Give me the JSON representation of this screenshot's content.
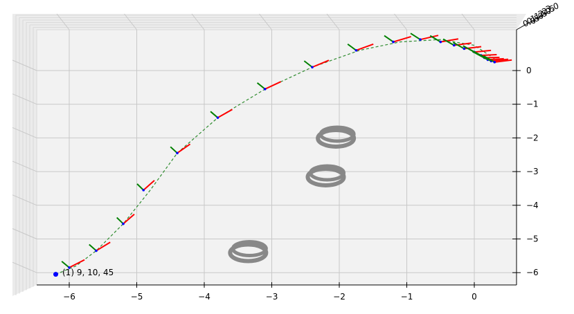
{
  "chart_data": {
    "type": "scatter",
    "projection": "3d",
    "view": "top-down",
    "grid": true,
    "x_ticks": [
      "−6",
      "−5",
      "−4",
      "−3",
      "−2",
      "−1",
      "0"
    ],
    "y_ticks": [
      "0",
      "−1",
      "−2",
      "−3",
      "−4",
      "−5",
      "−6"
    ],
    "z_ticks": [
      "3.0",
      "2.5",
      "2.0",
      "1.5",
      "1.0",
      "0.5",
      "0.0"
    ],
    "xlim": [
      -6.5,
      0.6
    ],
    "ylim": [
      -6.4,
      0.6
    ],
    "trajectory": {
      "style": "dashed",
      "color": "#2e8b2e",
      "x": [
        -6.2,
        -5.9,
        -5.6,
        -5.2,
        -4.8,
        -4.4,
        -3.8,
        -3.1,
        -2.4,
        -1.7,
        -1.1,
        -0.5,
        0.0,
        0.3
      ],
      "y": [
        -6.05,
        -5.8,
        -5.35,
        -4.55,
        -3.55,
        -2.45,
        -1.4,
        -0.55,
        0.1,
        0.6,
        0.85,
        0.92,
        0.75,
        0.35
      ]
    },
    "frames": [
      {
        "x": -6.0,
        "y": -5.85
      },
      {
        "x": -5.6,
        "y": -5.35
      },
      {
        "x": -5.2,
        "y": -4.55
      },
      {
        "x": -4.9,
        "y": -3.55
      },
      {
        "x": -4.4,
        "y": -2.45
      },
      {
        "x": -3.8,
        "y": -1.4
      },
      {
        "x": -3.1,
        "y": -0.55
      },
      {
        "x": -2.4,
        "y": 0.1
      },
      {
        "x": -1.75,
        "y": 0.6
      },
      {
        "x": -1.2,
        "y": 0.85
      },
      {
        "x": -0.8,
        "y": 0.92
      },
      {
        "x": -0.5,
        "y": 0.85
      },
      {
        "x": -0.3,
        "y": 0.75
      },
      {
        "x": -0.15,
        "y": 0.65
      },
      {
        "x": 0.0,
        "y": 0.55
      },
      {
        "x": 0.1,
        "y": 0.45
      },
      {
        "x": 0.15,
        "y": 0.38
      },
      {
        "x": 0.2,
        "y": 0.32
      },
      {
        "x": 0.25,
        "y": 0.28
      },
      {
        "x": 0.3,
        "y": 0.25
      }
    ],
    "rings": [
      {
        "x": -2.05,
        "y": -1.95
      },
      {
        "x": -2.2,
        "y": -3.1
      },
      {
        "x": -3.35,
        "y": -5.35
      }
    ],
    "start_marker": {
      "x": -6.2,
      "y": -6.05
    },
    "annotation": "(1) 9, 10, 45",
    "colors": {
      "trajectory": "#2e8b2e",
      "frame_x": "#ff0000",
      "frame_y": "#008000",
      "marker": "#0000ff",
      "ring": "#888888",
      "pane": "#f2f2f2",
      "grid": "#c8c8c8"
    }
  }
}
